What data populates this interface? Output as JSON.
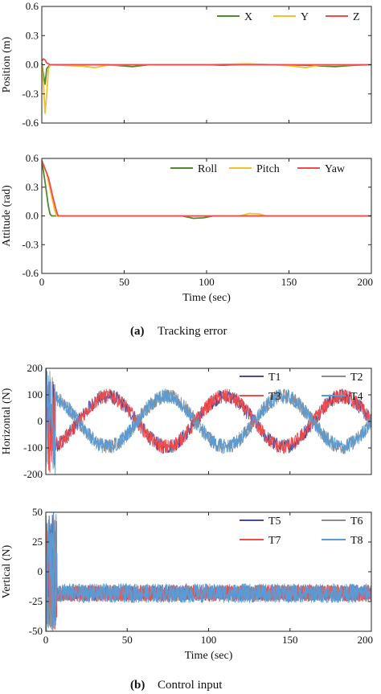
{
  "chart_data": [
    {
      "id": "position",
      "type": "line",
      "title": "",
      "xlabel": "",
      "ylabel": "Position (m)",
      "xlim": [
        0,
        200
      ],
      "ylim": [
        -0.6,
        0.6
      ],
      "xticks": [],
      "yticks": [
        "0.6",
        "0.3",
        "0.0",
        "-0.3",
        "-0.6"
      ],
      "yticks_values": [
        0.6,
        0.3,
        0.0,
        -0.3,
        -0.6
      ],
      "legend_placement": "top-right",
      "series": [
        {
          "name": "X",
          "color": "#4e8a2e",
          "points": [
            [
              0,
              0.02
            ],
            [
              1,
              -0.1
            ],
            [
              2,
              -0.2
            ],
            [
              3,
              -0.04
            ],
            [
              5,
              0.0
            ],
            [
              30,
              0.0
            ],
            [
              40,
              0.0
            ],
            [
              55,
              -0.02
            ],
            [
              65,
              0.0
            ],
            [
              100,
              0.0
            ],
            [
              110,
              -0.005
            ],
            [
              125,
              0.005
            ],
            [
              140,
              0.0
            ],
            [
              160,
              -0.005
            ],
            [
              178,
              -0.02
            ],
            [
              190,
              -0.005
            ],
            [
              200,
              0.0
            ]
          ]
        },
        {
          "name": "Y",
          "color": "#f2c12e",
          "points": [
            [
              0,
              0.0
            ],
            [
              1,
              -0.2
            ],
            [
              2,
              -0.5
            ],
            [
              3,
              -0.3
            ],
            [
              4,
              -0.05
            ],
            [
              5,
              0.0
            ],
            [
              25,
              -0.015
            ],
            [
              32,
              -0.03
            ],
            [
              40,
              -0.005
            ],
            [
              55,
              0.0
            ],
            [
              100,
              0.0
            ],
            [
              125,
              0.01
            ],
            [
              140,
              0.0
            ],
            [
              150,
              -0.01
            ],
            [
              160,
              -0.03
            ],
            [
              168,
              -0.005
            ],
            [
              200,
              0.0
            ]
          ]
        },
        {
          "name": "Z",
          "color": "#ef4b4b",
          "points": [
            [
              0,
              0.04
            ],
            [
              1,
              0.06
            ],
            [
              2,
              0.05
            ],
            [
              3,
              0.02
            ],
            [
              5,
              0.0
            ],
            [
              50,
              0.0
            ],
            [
              100,
              0.0
            ],
            [
              150,
              0.0
            ],
            [
              200,
              0.0
            ]
          ]
        }
      ]
    },
    {
      "id": "attitude",
      "type": "line",
      "title": "",
      "xlabel": "Time (sec)",
      "ylabel": "Attitude (rad)",
      "xlim": [
        0,
        200
      ],
      "ylim": [
        -0.6,
        0.6
      ],
      "xticks": [
        "0",
        "50",
        "100",
        "150",
        "200"
      ],
      "xticks_values": [
        0,
        50,
        100,
        150,
        200
      ],
      "yticks": [
        "0.6",
        "0.3",
        "0.0",
        "-0.3",
        "-0.6"
      ],
      "yticks_values": [
        0.6,
        0.3,
        0.0,
        -0.3,
        -0.6
      ],
      "legend_placement": "top-right",
      "series": [
        {
          "name": "Roll",
          "color": "#4e8a2e",
          "points": [
            [
              0,
              0.58
            ],
            [
              2,
              0.35
            ],
            [
              4,
              0.1
            ],
            [
              5,
              0.02
            ],
            [
              6,
              0.0
            ],
            [
              85,
              0.0
            ],
            [
              92,
              -0.025
            ],
            [
              98,
              -0.02
            ],
            [
              104,
              0.0
            ],
            [
              200,
              0.0
            ]
          ]
        },
        {
          "name": "Pitch",
          "color": "#f2c12e",
          "points": [
            [
              0,
              0.58
            ],
            [
              3,
              0.45
            ],
            [
              6,
              0.2
            ],
            [
              8,
              0.05
            ],
            [
              9,
              0.0
            ],
            [
              120,
              0.0
            ],
            [
              126,
              0.025
            ],
            [
              132,
              0.02
            ],
            [
              136,
              0.0
            ],
            [
              200,
              0.0
            ]
          ]
        },
        {
          "name": "Yaw",
          "color": "#ef4b4b",
          "points": [
            [
              0,
              0.58
            ],
            [
              4,
              0.4
            ],
            [
              7,
              0.18
            ],
            [
              9,
              0.04
            ],
            [
              10,
              0.0
            ],
            [
              200,
              0.0
            ]
          ]
        }
      ]
    },
    {
      "id": "horizontal",
      "type": "line",
      "title": "",
      "xlabel": "",
      "ylabel": "Horizontal (N)",
      "xlim": [
        0,
        200
      ],
      "ylim": [
        -200,
        200
      ],
      "xticks": [],
      "yticks": [
        "200",
        "100",
        "0",
        "-100",
        "-200"
      ],
      "yticks_values": [
        200,
        100,
        0,
        -100,
        -200
      ],
      "legend_placement": "top-right",
      "series": [
        {
          "name": "T1",
          "color": "#4a4a9a",
          "amplitude": 95,
          "period": 72,
          "phase": 20,
          "noise": 28
        },
        {
          "name": "T2",
          "color": "#8c8c8c",
          "amplitude": 95,
          "period": 72,
          "phase": 56,
          "noise": 28
        },
        {
          "name": "T3",
          "color": "#ef4b4b",
          "amplitude": 95,
          "period": 72,
          "phase": 56,
          "noise": 28,
          "sign": -1
        },
        {
          "name": "T4",
          "color": "#5a9bd5",
          "amplitude": 95,
          "period": 72,
          "phase": 20,
          "noise": 28,
          "sign": -1
        }
      ]
    },
    {
      "id": "vertical",
      "type": "line",
      "title": "",
      "xlabel": "Time (sec)",
      "ylabel": "Vertical (N)",
      "xlim": [
        0,
        200
      ],
      "ylim": [
        -50,
        50
      ],
      "xticks": [
        "0",
        "50",
        "100",
        "150",
        "200"
      ],
      "xticks_values": [
        0,
        50,
        100,
        150,
        200
      ],
      "yticks": [
        "50",
        "25",
        "0",
        "-25",
        "-50"
      ],
      "yticks_values": [
        50,
        25,
        0,
        -25,
        -50
      ],
      "legend_placement": "top-right",
      "series": [
        {
          "name": "T5",
          "color": "#4a4a9a",
          "mean": -18,
          "noise": 6
        },
        {
          "name": "T6",
          "color": "#8c8c8c",
          "mean": -18,
          "noise": 7
        },
        {
          "name": "T7",
          "color": "#ef4b4b",
          "mean": -18,
          "noise": 7
        },
        {
          "name": "T8",
          "color": "#5a9bd5",
          "mean": -18,
          "noise": 8
        }
      ]
    }
  ],
  "captions": {
    "a_label": "(a)",
    "a_text": "Tracking error",
    "b_label": "(b)",
    "b_text": "Control input"
  }
}
